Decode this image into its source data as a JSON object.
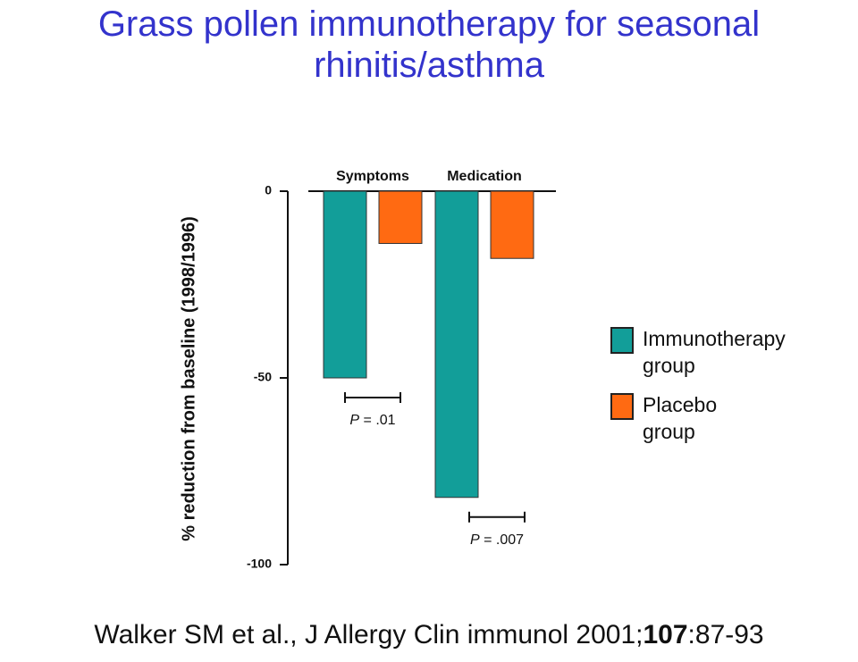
{
  "chart_data": {
    "type": "bar",
    "title": "Grass pollen immunotherapy for seasonal rhinitis/asthma",
    "y_label": "% reduction from baseline (1998/1996)",
    "categories": [
      "Symptoms",
      "Medication"
    ],
    "series": [
      {
        "name": "Immunotherapy group",
        "color": "#129e99",
        "values": [
          -50,
          -82
        ]
      },
      {
        "name": "Placebo group",
        "color": "#ff6a12",
        "values": [
          -14,
          -18
        ]
      }
    ],
    "ylim": [
      -100,
      0
    ],
    "yticks": [
      -100,
      -50,
      0
    ],
    "annotations": [
      {
        "symbol": "P",
        "text": "= .01"
      },
      {
        "symbol": "P",
        "text": "= .007"
      }
    ],
    "citation": {
      "before": "Walker SM et al., J Allergy Clin immunol 2001;",
      "volume": "107",
      "after": ":87-93"
    }
  }
}
